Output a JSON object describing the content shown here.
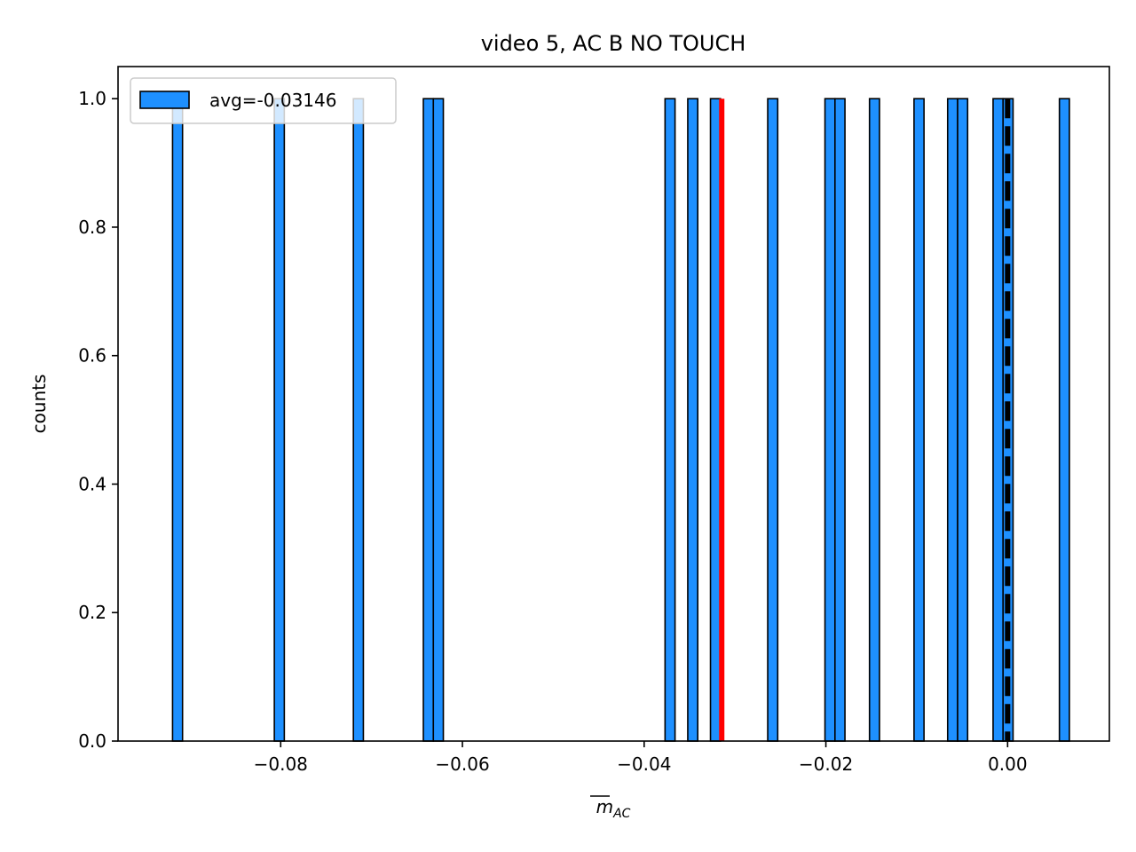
{
  "chart_data": {
    "type": "bar",
    "title": "video 5, AC B NO TOUCH",
    "xlabel": "m",
    "xlabel_subscript": "AC",
    "ylabel": "counts",
    "xlim": [
      -0.0979,
      0.0112
    ],
    "ylim": [
      0,
      1.05
    ],
    "bin_width": 0.0011,
    "x_ticks": [
      {
        "value": -0.08,
        "label": "−0.08"
      },
      {
        "value": -0.06,
        "label": "−0.06"
      },
      {
        "value": -0.04,
        "label": "−0.04"
      },
      {
        "value": -0.02,
        "label": "−0.02"
      },
      {
        "value": 0.0,
        "label": "0.00"
      }
    ],
    "y_ticks": [
      {
        "value": 0.0,
        "label": "0.0"
      },
      {
        "value": 0.2,
        "label": "0.2"
      },
      {
        "value": 0.4,
        "label": "0.4"
      },
      {
        "value": 0.6,
        "label": "0.6"
      },
      {
        "value": 0.8,
        "label": "0.8"
      },
      {
        "value": 1.0,
        "label": "1.0"
      }
    ],
    "series": [
      {
        "name": "avg=-0.03146",
        "color": "#1e90ff",
        "edge_color": "#000000",
        "bins": [
          {
            "x": -0.0919,
            "count": 1
          },
          {
            "x": -0.0807,
            "count": 1
          },
          {
            "x": -0.072,
            "count": 1
          },
          {
            "x": -0.0643,
            "count": 1
          },
          {
            "x": -0.0632,
            "count": 1
          },
          {
            "x": -0.0377,
            "count": 1
          },
          {
            "x": -0.0352,
            "count": 1
          },
          {
            "x": -0.0327,
            "count": 1
          },
          {
            "x": -0.0264,
            "count": 1
          },
          {
            "x": -0.0201,
            "count": 1
          },
          {
            "x": -0.019,
            "count": 1
          },
          {
            "x": -0.0152,
            "count": 1
          },
          {
            "x": -0.0103,
            "count": 1
          },
          {
            "x": -0.0066,
            "count": 1
          },
          {
            "x": -0.0055,
            "count": 1
          },
          {
            "x": -0.0016,
            "count": 1
          },
          {
            "x": -0.0005,
            "count": 1
          },
          {
            "x": 0.0057,
            "count": 1
          }
        ]
      }
    ],
    "reference_lines": [
      {
        "x": -0.03146,
        "color": "#ff0000",
        "style": "solid"
      },
      {
        "x": 0.0,
        "color": "#000000",
        "style": "dashed"
      }
    ],
    "legend": {
      "position": "top-left"
    },
    "grid": false
  }
}
